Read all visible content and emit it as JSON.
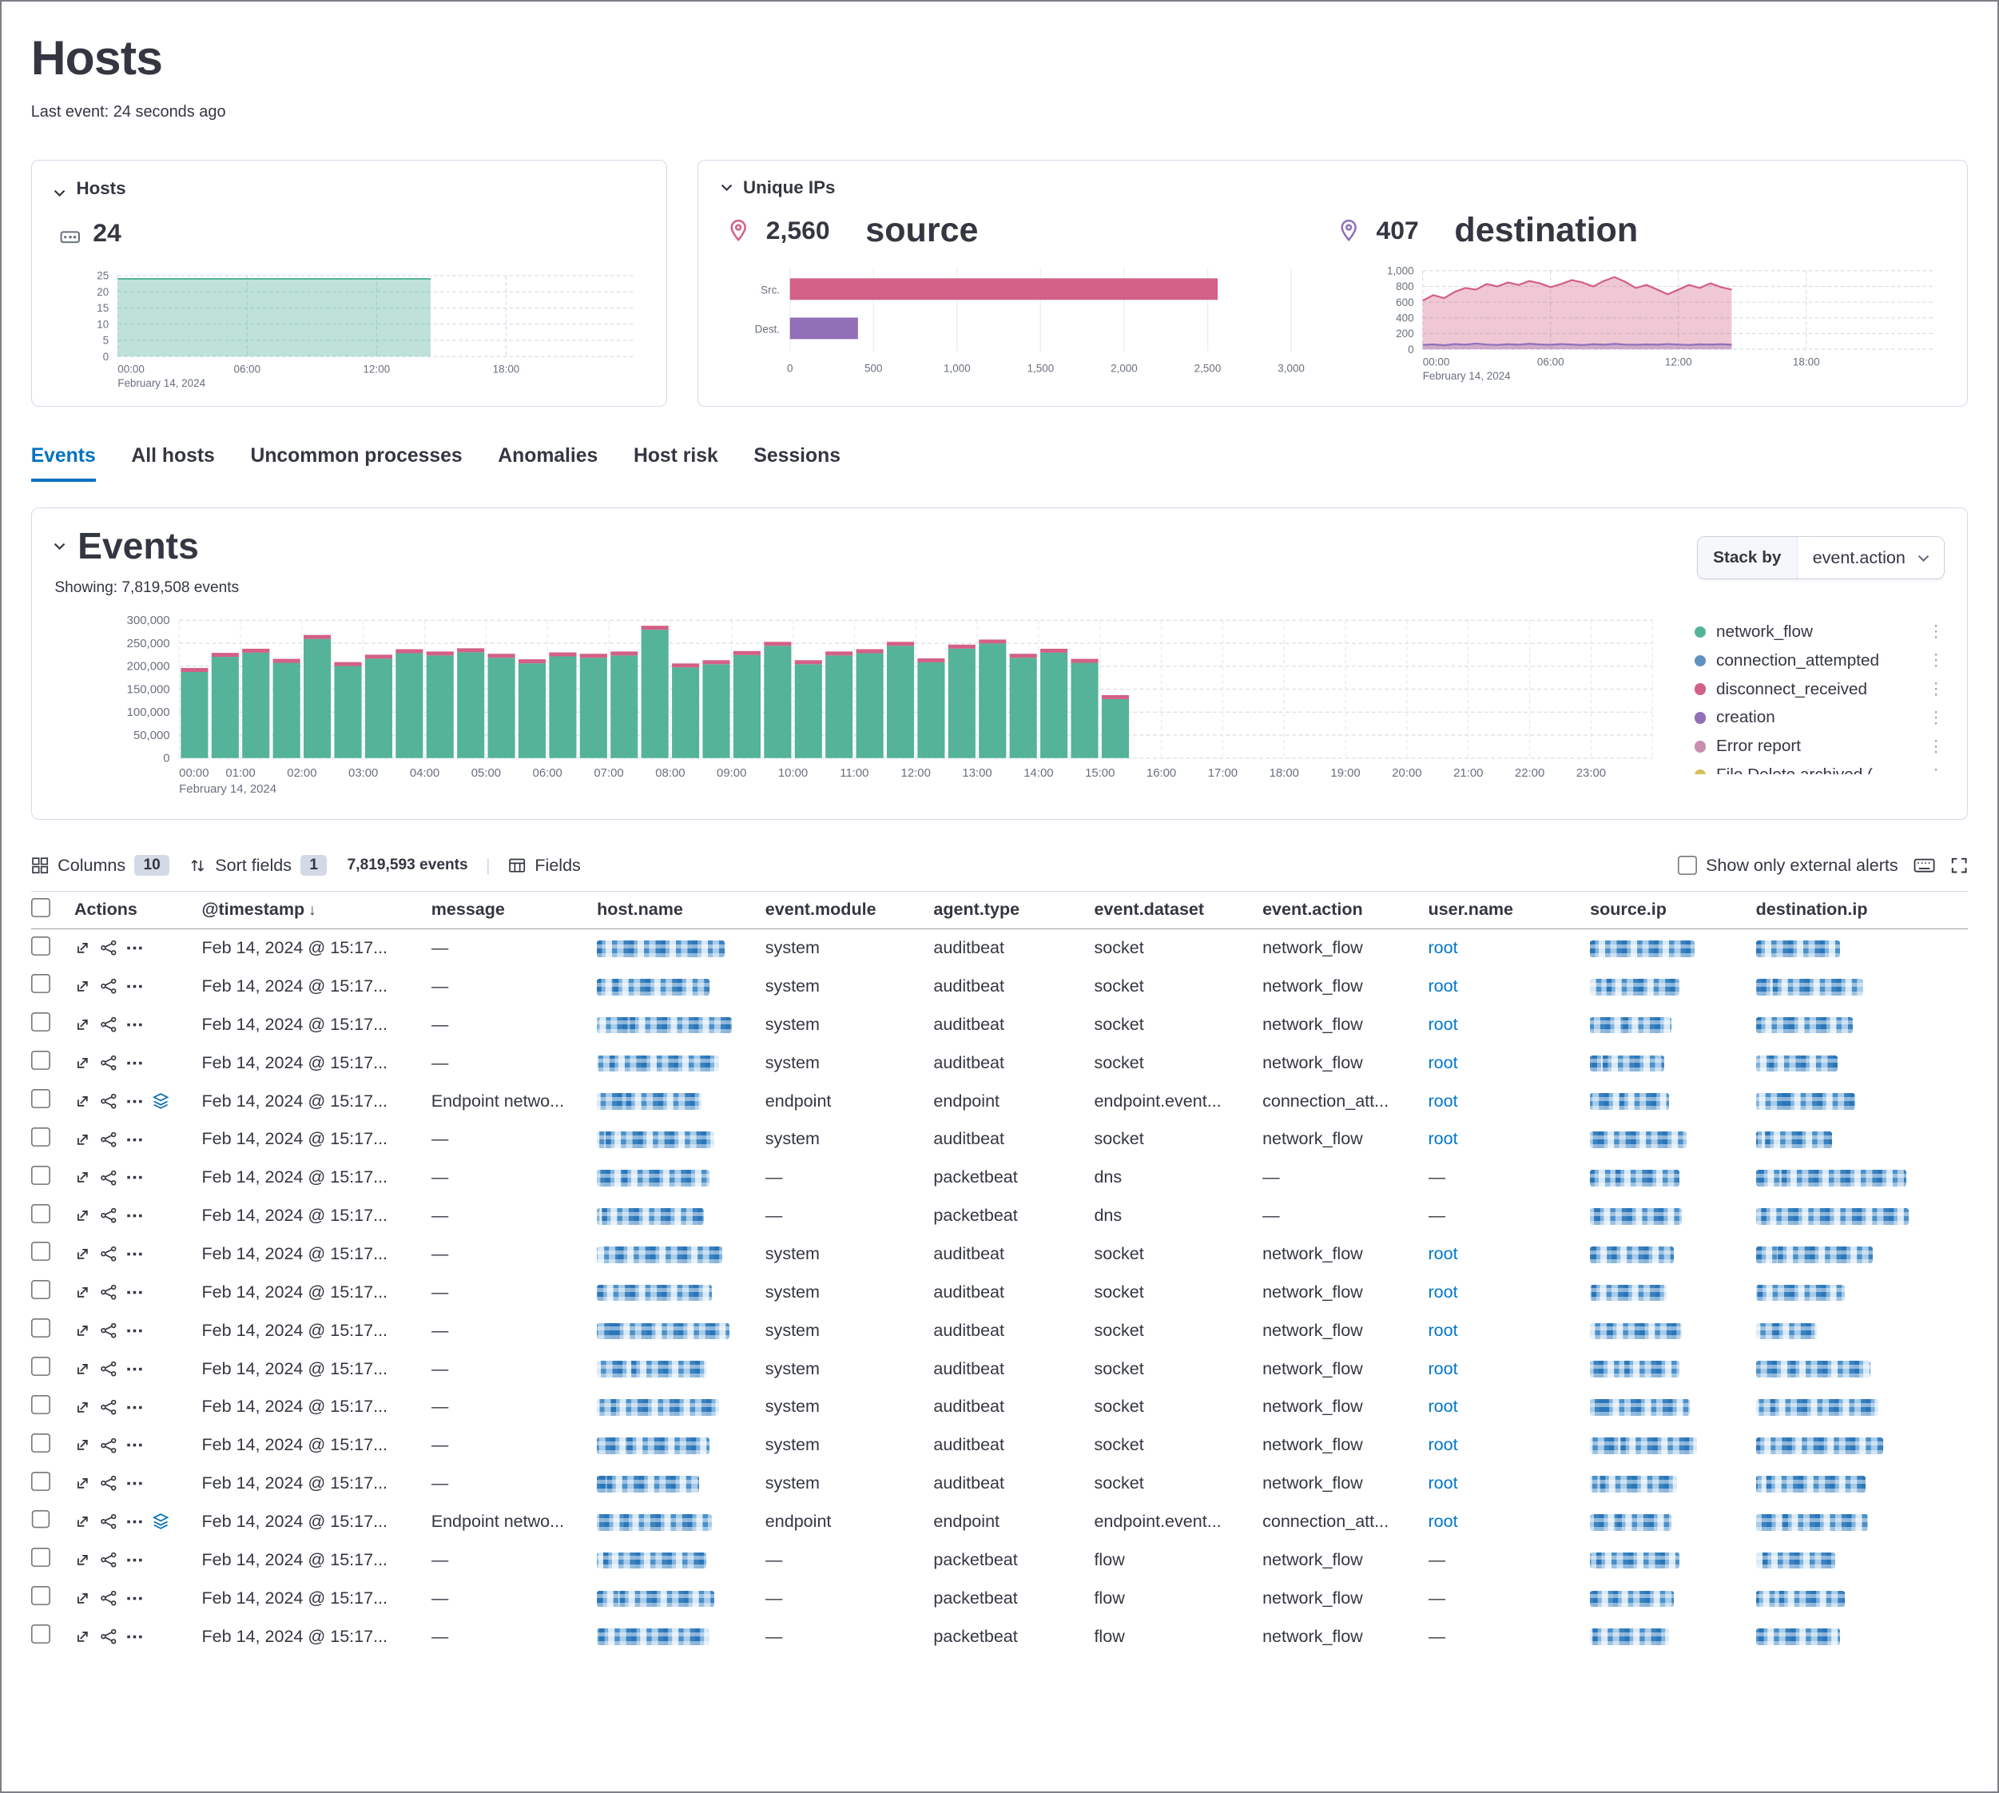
{
  "page": {
    "title": "Hosts",
    "last_event": "Last event: 24 seconds ago"
  },
  "hosts_panel": {
    "title": "Hosts",
    "count": "24",
    "chart_data": {
      "type": "area",
      "title": "Hosts over time",
      "value": 24,
      "end_hour": 14.5,
      "ylim": [
        0,
        25
      ],
      "yticks": [
        0,
        5,
        10,
        15,
        20,
        25
      ],
      "x_hours": [
        0,
        6,
        12,
        18
      ],
      "x_labels": [
        "00:00",
        "06:00",
        "12:00",
        "18:00"
      ],
      "date_label": "February 14, 2024",
      "color": "#54B399"
    }
  },
  "unique_ips_panel": {
    "title": "Unique IPs",
    "source": {
      "count": "2,560",
      "label": "source"
    },
    "destination": {
      "count": "407",
      "label": "destination"
    },
    "bar_chart_data": {
      "type": "bar",
      "orientation": "horizontal",
      "categories": [
        "Src.",
        "Dest."
      ],
      "values": [
        2560,
        407
      ],
      "colors": [
        "#D36086",
        "#9170B8"
      ],
      "xlim": [
        0,
        3000
      ],
      "xticks": [
        "0",
        "500",
        "1,000",
        "1,500",
        "2,000",
        "2,500",
        "3,000"
      ]
    },
    "area_chart_data": {
      "type": "area",
      "ylim": [
        0,
        1000
      ],
      "yticks": [
        "0",
        "200",
        "400",
        "600",
        "800",
        "1,000"
      ],
      "x_hours": [
        0,
        6,
        12,
        18
      ],
      "x_labels": [
        "00:00",
        "06:00",
        "12:00",
        "18:00"
      ],
      "date_label": "February 14, 2024",
      "series": [
        {
          "name": "source",
          "color": "#D36086",
          "values": [
            620,
            690,
            650,
            730,
            780,
            760,
            830,
            800,
            850,
            820,
            870,
            840,
            790,
            830,
            880,
            850,
            800,
            870,
            920,
            860,
            780,
            820,
            760,
            700,
            760,
            820,
            780,
            840,
            790,
            760
          ]
        },
        {
          "name": "destination",
          "color": "#9170B8",
          "values": [
            55,
            62,
            50,
            66,
            58,
            72,
            60,
            55,
            64,
            58,
            70,
            62,
            56,
            66,
            60,
            54,
            64,
            58,
            68,
            60,
            56,
            62,
            58,
            66,
            60,
            55,
            63,
            59,
            64,
            58
          ]
        }
      ]
    }
  },
  "tabs": [
    {
      "label": "Events",
      "active": true
    },
    {
      "label": "All hosts"
    },
    {
      "label": "Uncommon processes"
    },
    {
      "label": "Anomalies"
    },
    {
      "label": "Host risk"
    },
    {
      "label": "Sessions"
    }
  ],
  "events_panel": {
    "title": "Events",
    "showing": "Showing: 7,819,508 events",
    "stack_by_label": "Stack by",
    "stack_by_value": "event.action",
    "chart_data": {
      "type": "bar",
      "stacked": true,
      "bucket_minutes": 30,
      "x": [
        "00:00",
        "00:30",
        "01:00",
        "01:30",
        "02:00",
        "02:30",
        "03:00",
        "03:30",
        "04:00",
        "04:30",
        "05:00",
        "05:30",
        "06:00",
        "06:30",
        "07:00",
        "07:30",
        "08:00",
        "08:30",
        "09:00",
        "09:30",
        "10:00",
        "10:30",
        "11:00",
        "11:30",
        "12:00",
        "12:30",
        "13:00",
        "13:30",
        "14:00",
        "14:30",
        "15:00"
      ],
      "values": [
        196000,
        229000,
        238000,
        216000,
        268000,
        209000,
        225000,
        237000,
        232000,
        239000,
        227000,
        215000,
        230000,
        227000,
        232000,
        288000,
        206000,
        213000,
        233000,
        253000,
        213000,
        232000,
        237000,
        253000,
        217000,
        247000,
        258000,
        227000,
        238000,
        216000,
        137000
      ],
      "bar_color": "#54B399",
      "cap_color": "#D36086",
      "ylim": [
        0,
        300000
      ],
      "yticks": [
        "0",
        "50,000",
        "100,000",
        "150,000",
        "200,000",
        "250,000",
        "300,000"
      ],
      "x_tick_labels": [
        "00:00",
        "01:00",
        "02:00",
        "03:00",
        "04:00",
        "05:00",
        "06:00",
        "07:00",
        "08:00",
        "09:00",
        "10:00",
        "11:00",
        "12:00",
        "13:00",
        "14:00",
        "15:00",
        "16:00",
        "17:00",
        "18:00",
        "19:00",
        "20:00",
        "21:00",
        "22:00",
        "23:00"
      ],
      "date_label": "February 14, 2024"
    },
    "legend": [
      {
        "label": "network_flow",
        "color": "#54B399"
      },
      {
        "label": "connection_attempted",
        "color": "#6092C0"
      },
      {
        "label": "disconnect_received",
        "color": "#D36086"
      },
      {
        "label": "creation",
        "color": "#9170B8"
      },
      {
        "label": "Error report",
        "color": "#CA8EAE"
      },
      {
        "label": "File Delete archived (",
        "color": "#D6BF57"
      }
    ]
  },
  "table": {
    "toolbar": {
      "columns_label": "Columns",
      "columns_count": "10",
      "sort_label": "Sort fields",
      "sort_count": "1",
      "events_count": "7,819,593 events",
      "fields_label": "Fields",
      "external_alerts_label": "Show only external alerts"
    },
    "columns": [
      "Actions",
      "@timestamp",
      "message",
      "host.name",
      "event.module",
      "agent.type",
      "event.dataset",
      "event.action",
      "user.name",
      "source.ip",
      "destination.ip"
    ],
    "rows": [
      {
        "timestamp": "Feb 14, 2024 @ 15:17...",
        "message": "—",
        "module": "system",
        "agent": "auditbeat",
        "dataset": "socket",
        "action": "network_flow",
        "user": "root",
        "endpoint": false,
        "host_w": 100,
        "src_w": 82,
        "dst_w": 66
      },
      {
        "timestamp": "Feb 14, 2024 @ 15:17...",
        "message": "—",
        "module": "system",
        "agent": "auditbeat",
        "dataset": "socket",
        "action": "network_flow",
        "user": "root",
        "endpoint": false,
        "host_w": 88,
        "src_w": 70,
        "dst_w": 84
      },
      {
        "timestamp": "Feb 14, 2024 @ 15:17...",
        "message": "—",
        "module": "system",
        "agent": "auditbeat",
        "dataset": "socket",
        "action": "network_flow",
        "user": "root",
        "endpoint": false,
        "host_w": 106,
        "src_w": 64,
        "dst_w": 76
      },
      {
        "timestamp": "Feb 14, 2024 @ 15:17...",
        "message": "—",
        "module": "system",
        "agent": "auditbeat",
        "dataset": "socket",
        "action": "network_flow",
        "user": "root",
        "endpoint": false,
        "host_w": 96,
        "src_w": 58,
        "dst_w": 64
      },
      {
        "timestamp": "Feb 14, 2024 @ 15:17...",
        "message": "Endpoint netwo...",
        "module": "endpoint",
        "agent": "endpoint",
        "dataset": "endpoint.event...",
        "action": "connection_att...",
        "user": "root",
        "endpoint": true,
        "host_w": 82,
        "src_w": 62,
        "dst_w": 78
      },
      {
        "timestamp": "Feb 14, 2024 @ 15:17...",
        "message": "—",
        "module": "system",
        "agent": "auditbeat",
        "dataset": "socket",
        "action": "network_flow",
        "user": "root",
        "endpoint": false,
        "host_w": 92,
        "src_w": 76,
        "dst_w": 60
      },
      {
        "timestamp": "Feb 14, 2024 @ 15:17...",
        "message": "—",
        "module": "—",
        "agent": "packetbeat",
        "dataset": "dns",
        "action": "—",
        "user": "—",
        "endpoint": false,
        "host_w": 88,
        "src_w": 70,
        "dst_w": 118
      },
      {
        "timestamp": "Feb 14, 2024 @ 15:17...",
        "message": "—",
        "module": "—",
        "agent": "packetbeat",
        "dataset": "dns",
        "action": "—",
        "user": "—",
        "endpoint": false,
        "host_w": 84,
        "src_w": 72,
        "dst_w": 120
      },
      {
        "timestamp": "Feb 14, 2024 @ 15:17...",
        "message": "—",
        "module": "system",
        "agent": "auditbeat",
        "dataset": "socket",
        "action": "network_flow",
        "user": "root",
        "endpoint": false,
        "host_w": 98,
        "src_w": 66,
        "dst_w": 92
      },
      {
        "timestamp": "Feb 14, 2024 @ 15:17...",
        "message": "—",
        "module": "system",
        "agent": "auditbeat",
        "dataset": "socket",
        "action": "network_flow",
        "user": "root",
        "endpoint": false,
        "host_w": 90,
        "src_w": 60,
        "dst_w": 70
      },
      {
        "timestamp": "Feb 14, 2024 @ 15:17...",
        "message": "—",
        "module": "system",
        "agent": "auditbeat",
        "dataset": "socket",
        "action": "network_flow",
        "user": "root",
        "endpoint": false,
        "host_w": 104,
        "src_w": 72,
        "dst_w": 48
      },
      {
        "timestamp": "Feb 14, 2024 @ 15:17...",
        "message": "—",
        "module": "system",
        "agent": "auditbeat",
        "dataset": "socket",
        "action": "network_flow",
        "user": "root",
        "endpoint": false,
        "host_w": 86,
        "src_w": 70,
        "dst_w": 90
      },
      {
        "timestamp": "Feb 14, 2024 @ 15:17...",
        "message": "—",
        "module": "system",
        "agent": "auditbeat",
        "dataset": "socket",
        "action": "network_flow",
        "user": "root",
        "endpoint": false,
        "host_w": 96,
        "src_w": 78,
        "dst_w": 96
      },
      {
        "timestamp": "Feb 14, 2024 @ 15:17...",
        "message": "—",
        "module": "system",
        "agent": "auditbeat",
        "dataset": "socket",
        "action": "network_flow",
        "user": "root",
        "endpoint": false,
        "host_w": 88,
        "src_w": 84,
        "dst_w": 100
      },
      {
        "timestamp": "Feb 14, 2024 @ 15:17...",
        "message": "—",
        "module": "system",
        "agent": "auditbeat",
        "dataset": "socket",
        "action": "network_flow",
        "user": "root",
        "endpoint": false,
        "host_w": 80,
        "src_w": 68,
        "dst_w": 86
      },
      {
        "timestamp": "Feb 14, 2024 @ 15:17...",
        "message": "Endpoint netwo...",
        "module": "endpoint",
        "agent": "endpoint",
        "dataset": "endpoint.event...",
        "action": "connection_att...",
        "user": "root",
        "endpoint": true,
        "host_w": 90,
        "src_w": 64,
        "dst_w": 88
      },
      {
        "timestamp": "Feb 14, 2024 @ 15:17...",
        "message": "—",
        "module": "—",
        "agent": "packetbeat",
        "dataset": "flow",
        "action": "network_flow",
        "user": "—",
        "endpoint": false,
        "host_w": 86,
        "src_w": 70,
        "dst_w": 62
      },
      {
        "timestamp": "Feb 14, 2024 @ 15:17...",
        "message": "—",
        "module": "—",
        "agent": "packetbeat",
        "dataset": "flow",
        "action": "network_flow",
        "user": "—",
        "endpoint": false,
        "host_w": 92,
        "src_w": 66,
        "dst_w": 70
      },
      {
        "timestamp": "Feb 14, 2024 @ 15:17...",
        "message": "—",
        "module": "—",
        "agent": "packetbeat",
        "dataset": "flow",
        "action": "network_flow",
        "user": "—",
        "endpoint": false,
        "host_w": 88,
        "src_w": 62,
        "dst_w": 66
      }
    ]
  }
}
